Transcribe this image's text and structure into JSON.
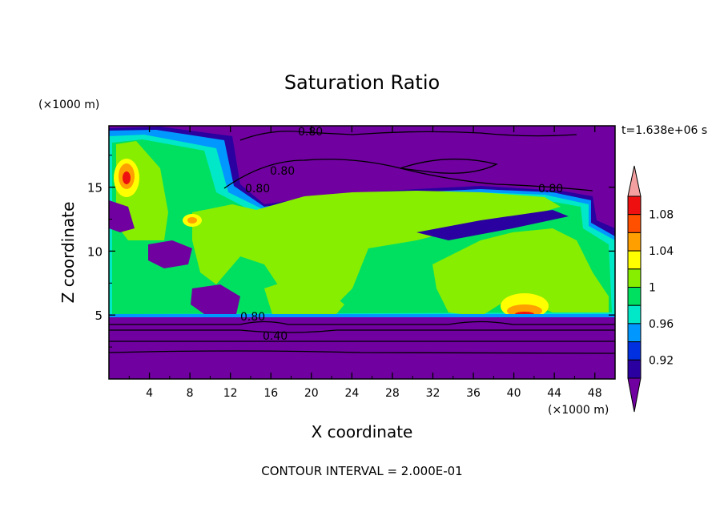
{
  "chart_data": {
    "type": "heatmap",
    "title": "Saturation Ratio",
    "xlabel": "X coordinate",
    "ylabel": "Z coordinate",
    "x_unit": "(×1000 m)",
    "y_unit": "(×1000 m)",
    "time_label": "t=1.638e+06 s",
    "footer": "CONTOUR INTERVAL = 2.000E-01",
    "xlim": [
      0,
      50
    ],
    "ylim": [
      0,
      19.8
    ],
    "x_ticks": [
      "4",
      "8",
      "12",
      "16",
      "20",
      "24",
      "28",
      "32",
      "36",
      "40",
      "44",
      "48"
    ],
    "y_ticks": [
      "5",
      "10",
      "15"
    ],
    "contour_labels": [
      "0.80",
      "0.80",
      "0.80",
      "0.80",
      "0.80",
      "0.40"
    ],
    "colorbar": {
      "labels": [
        "1.08",
        "1.04",
        "1",
        "0.96",
        "0.92"
      ],
      "levels": [
        0.92,
        0.94,
        0.96,
        0.98,
        1.0,
        1.02,
        1.04,
        1.06,
        1.08,
        1.1
      ],
      "colors": [
        "#7000a0",
        "#2a00a0",
        "#0030e0",
        "#0098ff",
        "#00e8c8",
        "#00e060",
        "#88ee00",
        "#ffff00",
        "#ffa000",
        "#ff5000",
        "#ee1010",
        "#f4a0a0"
      ]
    }
  }
}
